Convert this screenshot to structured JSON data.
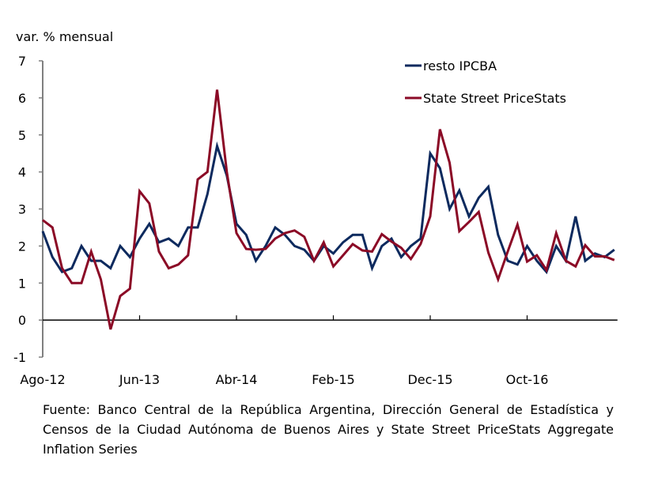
{
  "chart_data": {
    "type": "line",
    "title": "",
    "ylabel": "var. % mensual",
    "xlabel": "",
    "ylim": [
      -1,
      7
    ],
    "yticks": [
      "-1",
      "0",
      "1",
      "2",
      "3",
      "4",
      "5",
      "6",
      "7"
    ],
    "xtick_labels": [
      "Ago-12",
      "Jun-13",
      "Abr-14",
      "Feb-15",
      "Dec-15",
      "Oct-16"
    ],
    "x_start": "Ago-12",
    "x_end": "Jul-17",
    "legend_position": "top-right",
    "series": [
      {
        "name": "resto IPCBA",
        "color": "#0d2a5e",
        "values": [
          2.4,
          1.7,
          1.3,
          1.4,
          2.0,
          1.6,
          1.6,
          1.4,
          2.0,
          1.7,
          2.2,
          2.6,
          2.1,
          2.2,
          2.0,
          2.5,
          2.5,
          3.4,
          4.7,
          3.9,
          2.6,
          2.3,
          1.6,
          2.0,
          2.5,
          2.3,
          2.0,
          1.9,
          1.6,
          2.0,
          1.8,
          2.1,
          2.3,
          2.3,
          1.4,
          2.0,
          2.2,
          1.7,
          2.0,
          2.2,
          4.5,
          4.1,
          3.0,
          3.5,
          2.8,
          3.3,
          3.6,
          2.3,
          1.6,
          1.5,
          2.0,
          1.6,
          1.3,
          2.0,
          1.6,
          2.8,
          1.6,
          1.8,
          1.7,
          1.9
        ]
      },
      {
        "name": "State Street PriceStats",
        "color": "#8b0a26",
        "values": [
          2.7,
          2.5,
          1.4,
          1.0,
          1.0,
          1.85,
          1.1,
          -0.25,
          0.65,
          0.85,
          3.48,
          3.15,
          1.85,
          1.4,
          1.5,
          1.75,
          3.8,
          4.0,
          6.22,
          4.0,
          2.35,
          1.92,
          1.9,
          1.92,
          2.2,
          2.35,
          2.42,
          2.25,
          1.6,
          2.1,
          1.45,
          1.75,
          2.05,
          1.88,
          1.85,
          2.32,
          2.12,
          1.95,
          1.65,
          2.05,
          2.8,
          5.15,
          4.25,
          2.4,
          2.65,
          2.92,
          1.82,
          1.1,
          1.85,
          2.58,
          1.58,
          1.75,
          1.35,
          2.35,
          1.6,
          1.45,
          2.02,
          1.72,
          1.72,
          1.62
        ]
      }
    ],
    "grid": false
  },
  "source": "Fuente: Banco Central de la República Argentina, Dirección General de Estadística y Censos de la Ciudad Autónoma de Buenos Aires y State Street PriceStats Aggregate Inflation Series"
}
